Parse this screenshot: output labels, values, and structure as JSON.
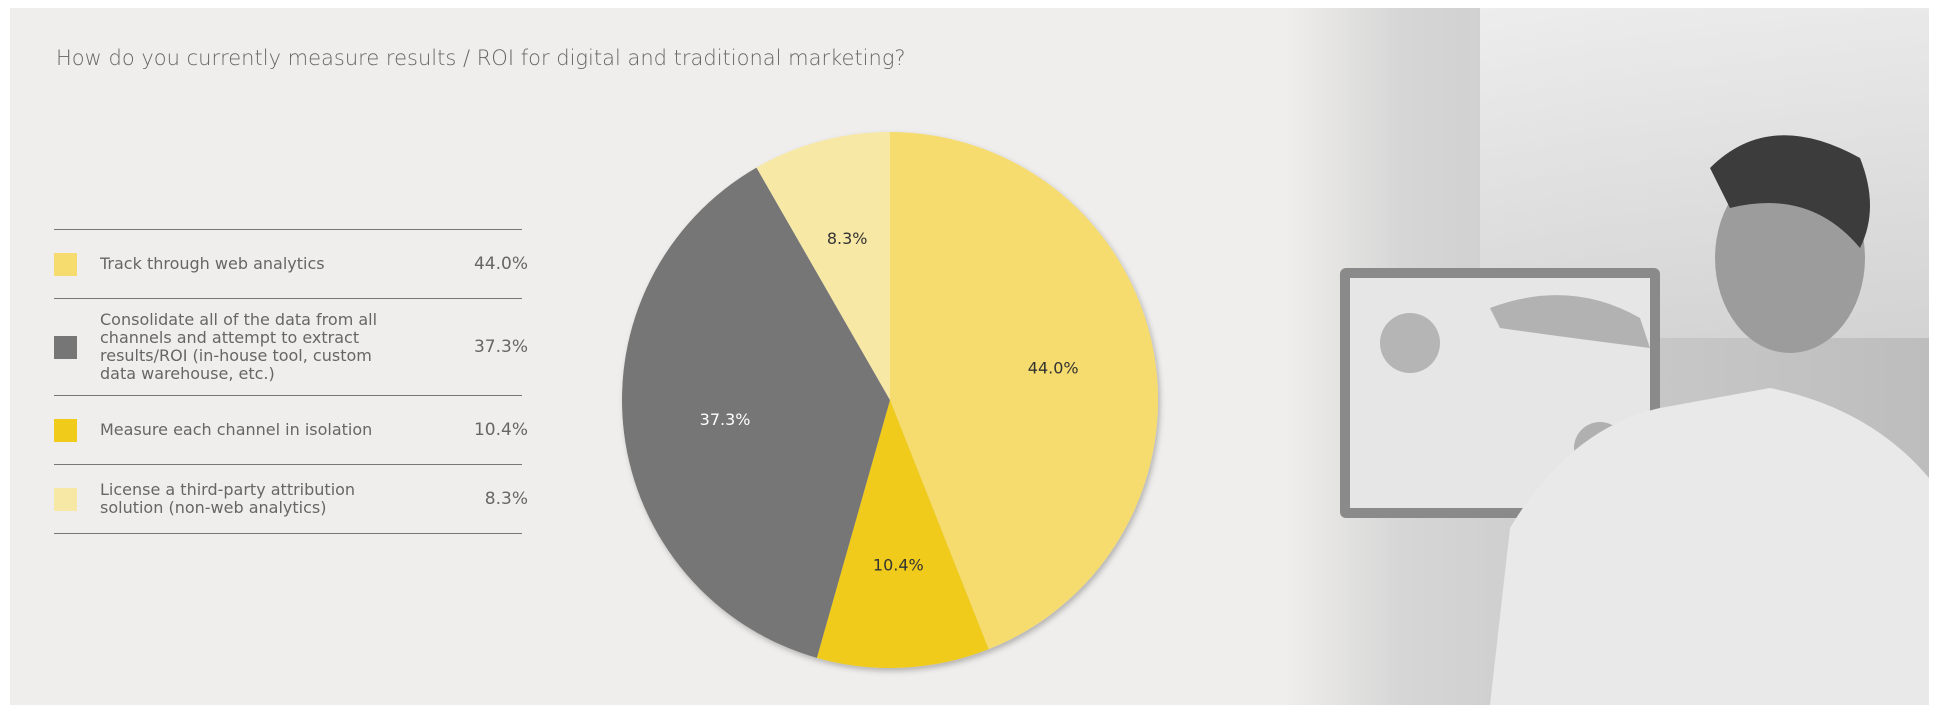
{
  "chart_data": {
    "type": "pie",
    "title": "How do you currently measure results / ROI for digital and traditional marketing?",
    "categories": [
      "Track through web analytics",
      "Consolidate all of the data from all channels and attempt to extract results/ROI (in-house tool, custom data warehouse, etc.)",
      "Measure each channel in isolation",
      "License a third-party attribution solution (non-web analytics)"
    ],
    "values": [
      44.0,
      37.3,
      10.4,
      8.3
    ],
    "value_labels": [
      "44.0%",
      "37.3%",
      "10.4%",
      "8.3%"
    ],
    "colors": [
      "#f6dc6e",
      "#767676",
      "#f0cb1a",
      "#f8e8a6"
    ]
  }
}
